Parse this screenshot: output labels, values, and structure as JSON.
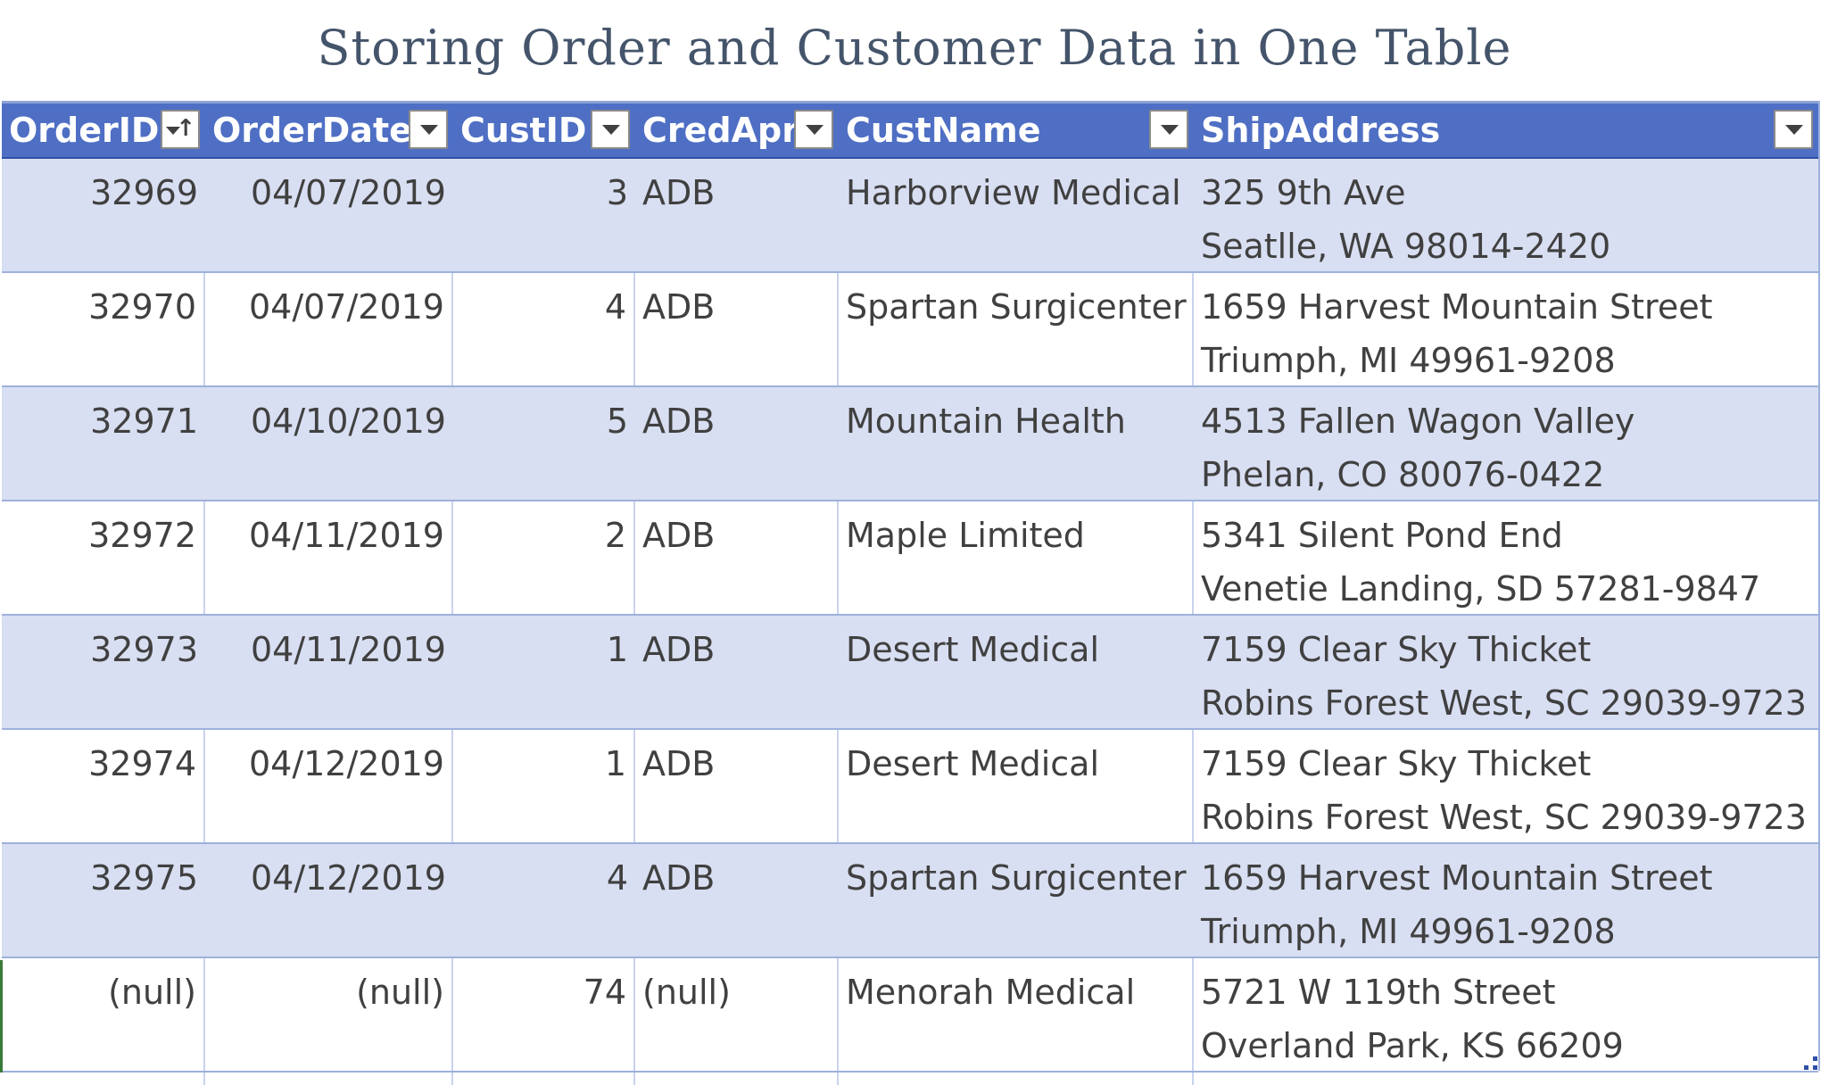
{
  "title": "Storing Order and Customer Data in One Table",
  "table": {
    "columns": [
      {
        "label": "OrderID",
        "sorted": "ascending"
      },
      {
        "label": "OrderDate"
      },
      {
        "label": "CustID"
      },
      {
        "label": "CredApr"
      },
      {
        "label": "CustName"
      },
      {
        "label": "ShipAddress"
      }
    ],
    "rows": [
      {
        "order_id": "32969",
        "order_date": "04/07/2019",
        "cust_id": "3",
        "cred_apr": "ADB",
        "cust_name": "Harborview Medical",
        "addr_line1": "325 9th Ave",
        "addr_line2": "Seatlle, WA 98014-2420"
      },
      {
        "order_id": "32970",
        "order_date": "04/07/2019",
        "cust_id": "4",
        "cred_apr": "ADB",
        "cust_name": "Spartan Surgicenter",
        "addr_line1": "1659 Harvest Mountain Street",
        "addr_line2": "Triumph, MI 49961-9208"
      },
      {
        "order_id": "32971",
        "order_date": "04/10/2019",
        "cust_id": "5",
        "cred_apr": "ADB",
        "cust_name": "Mountain Health",
        "addr_line1": "4513 Fallen Wagon Valley",
        "addr_line2": "Phelan, CO 80076-0422"
      },
      {
        "order_id": "32972",
        "order_date": "04/11/2019",
        "cust_id": "2",
        "cred_apr": "ADB",
        "cust_name": "Maple Limited",
        "addr_line1": "5341 Silent Pond End",
        "addr_line2": "Venetie Landing, SD 57281-9847"
      },
      {
        "order_id": "32973",
        "order_date": "04/11/2019",
        "cust_id": "1",
        "cred_apr": "ADB",
        "cust_name": "Desert Medical",
        "addr_line1": "7159 Clear Sky Thicket",
        "addr_line2": "Robins Forest West, SC 29039-9723"
      },
      {
        "order_id": "32974",
        "order_date": "04/12/2019",
        "cust_id": "1",
        "cred_apr": "ADB",
        "cust_name": "Desert Medical",
        "addr_line1": "7159 Clear Sky Thicket",
        "addr_line2": "Robins Forest West, SC 29039-9723"
      },
      {
        "order_id": "32975",
        "order_date": "04/12/2019",
        "cust_id": "4",
        "cred_apr": "ADB",
        "cust_name": "Spartan Surgicenter",
        "addr_line1": "1659 Harvest Mountain Street",
        "addr_line2": "Triumph, MI 49961-9208"
      },
      {
        "order_id": "(null)",
        "order_date": "(null)",
        "cust_id": "74",
        "cred_apr": "(null)",
        "cust_name": "Menorah Medical",
        "addr_line1": "5721 W 119th Street",
        "addr_line2": "Overland Park, KS 66209"
      }
    ]
  },
  "colors": {
    "header_bg": "#4f6fc4",
    "band_bg": "#d9dff2",
    "title_text": "#44546a",
    "cell_text": "#404040"
  }
}
